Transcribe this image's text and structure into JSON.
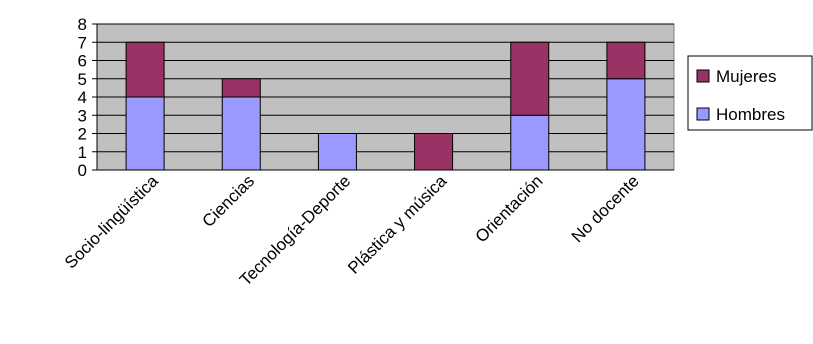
{
  "chart_data": {
    "type": "bar",
    "stacked": true,
    "categories": [
      "Socio-lingüística",
      "Ciencias",
      "Tecnología-Deporte",
      "Plástica y música",
      "Orientación",
      "No docente"
    ],
    "series": [
      {
        "name": "Hombres",
        "values": [
          4,
          4,
          2,
          0,
          3,
          5
        ],
        "color": "#9999ff"
      },
      {
        "name": "Mujeres",
        "values": [
          3,
          1,
          0,
          2,
          4,
          2
        ],
        "color": "#993366"
      }
    ],
    "yticks": [
      0,
      1,
      2,
      3,
      4,
      5,
      6,
      7,
      8
    ],
    "ylim": [
      0,
      8
    ],
    "grid": true,
    "legend": "right",
    "plot_background": "#c0c0c0"
  }
}
